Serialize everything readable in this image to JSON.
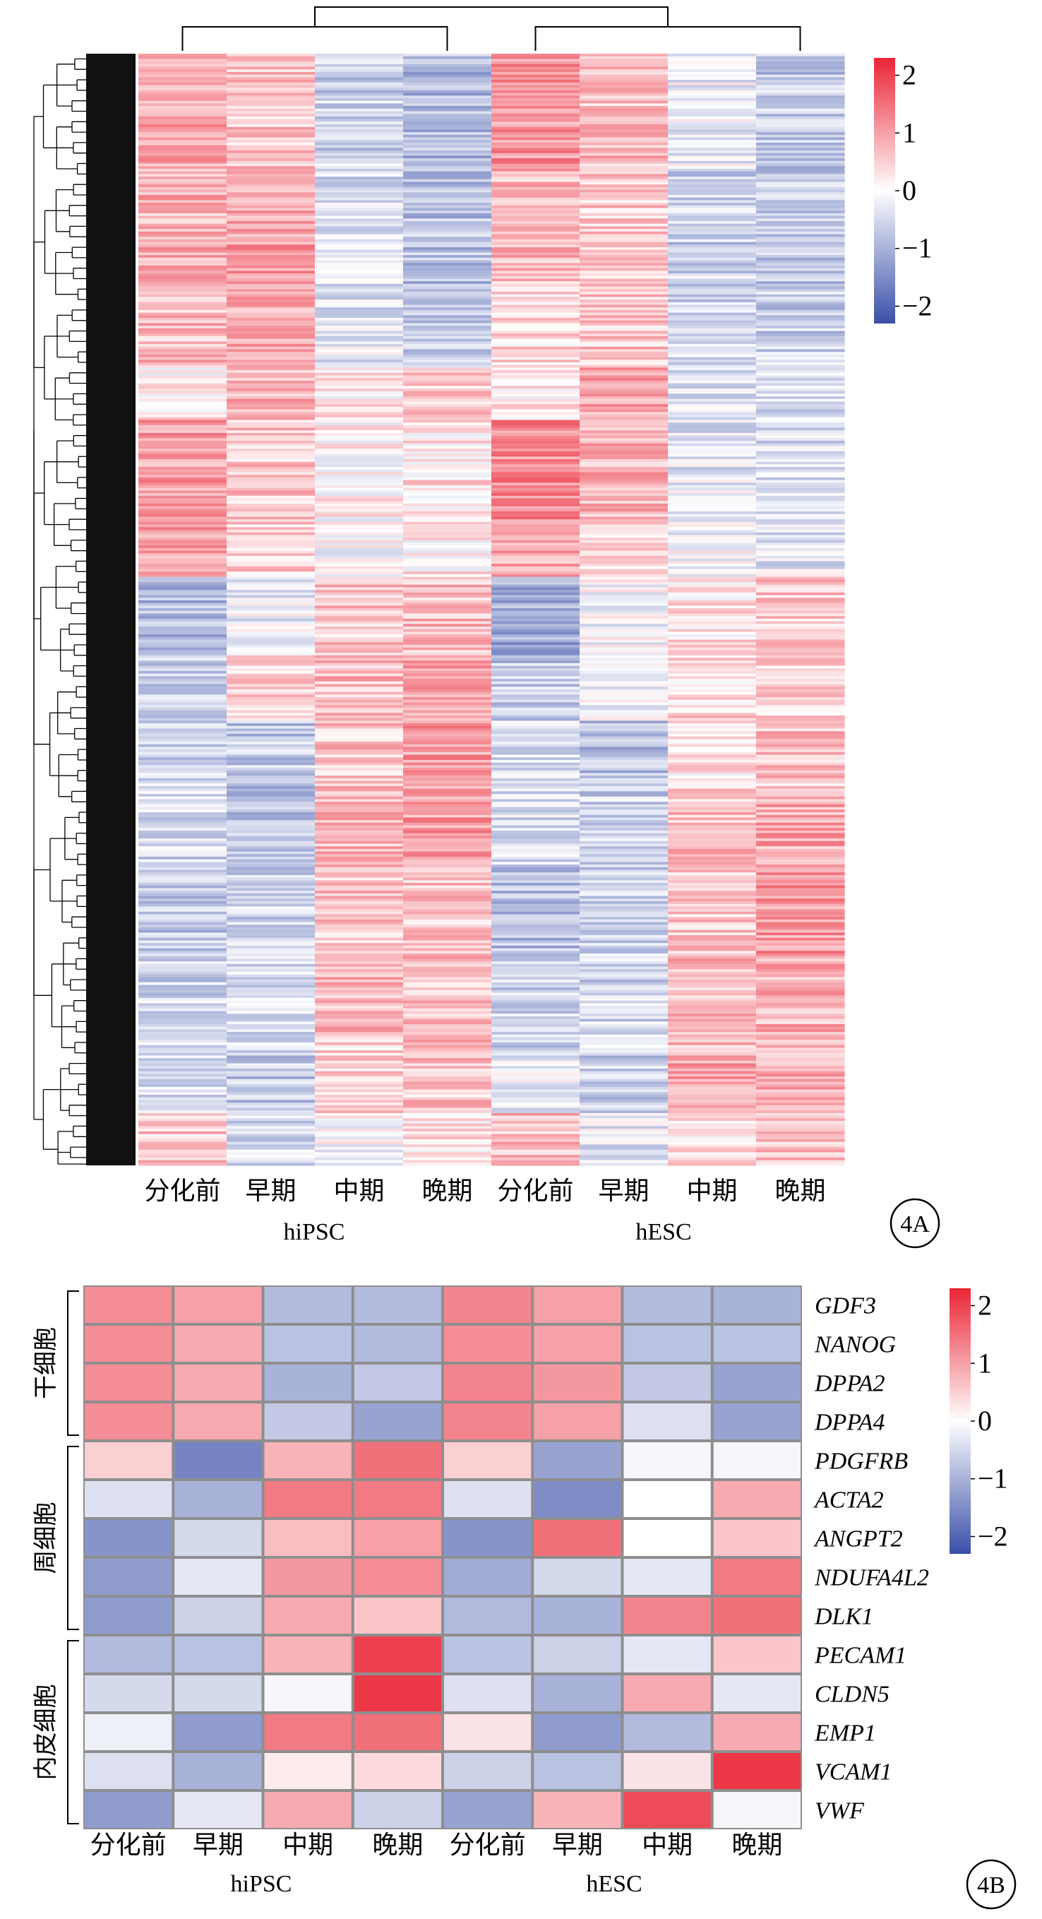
{
  "colors": {
    "low": "#3a4fa8",
    "mid": "#ffffff",
    "high": "#ea2535",
    "gap": "#8e8e8e",
    "tree": "#000000"
  },
  "chart_data": [
    {
      "id": "4A",
      "type": "heatmap",
      "panel_label": "4A",
      "columns": [
        "分化前",
        "早期",
        "中期",
        "晚期",
        "分化前",
        "早期",
        "中期",
        "晚期"
      ],
      "groups": [
        {
          "name": "hiPSC",
          "span": [
            0,
            3
          ]
        },
        {
          "name": "hESC",
          "span": [
            4,
            7
          ]
        }
      ],
      "column_dendrogram": true,
      "row_dendrogram": true,
      "row_blocks": [
        {
          "rows": 45,
          "values": [
            0.9,
            0.6,
            -0.6,
            -0.9,
            1.1,
            0.7,
            -0.2,
            -0.7
          ]
        },
        {
          "rows": 45,
          "values": [
            0.8,
            1.0,
            -0.4,
            -0.8,
            0.7,
            0.6,
            -0.6,
            -0.7
          ]
        },
        {
          "rows": 30,
          "values": [
            0.7,
            0.9,
            -0.3,
            -0.6,
            0.4,
            0.6,
            -0.5,
            -0.6
          ]
        },
        {
          "rows": 20,
          "values": [
            0.2,
            0.8,
            0.2,
            0.6,
            0.2,
            0.9,
            -0.3,
            -0.4
          ]
        },
        {
          "rows": 40,
          "values": [
            1.0,
            0.6,
            0.1,
            0.3,
            1.2,
            0.8,
            -0.3,
            -0.4
          ]
        },
        {
          "rows": 20,
          "values": [
            0.9,
            0.5,
            -0.1,
            0.2,
            0.9,
            0.4,
            -0.1,
            -0.3
          ]
        },
        {
          "rows": 30,
          "values": [
            -0.9,
            -0.2,
            0.6,
            0.7,
            -1.1,
            -0.1,
            0.3,
            0.6
          ]
        },
        {
          "rows": 25,
          "values": [
            -0.6,
            0.4,
            0.7,
            1.0,
            -0.7,
            -0.1,
            0.4,
            0.5
          ]
        },
        {
          "rows": 25,
          "values": [
            -0.5,
            -0.7,
            0.6,
            1.0,
            -0.4,
            -0.8,
            0.3,
            0.6
          ]
        },
        {
          "rows": 30,
          "values": [
            -0.5,
            -0.8,
            0.7,
            1.0,
            -0.4,
            -0.6,
            0.6,
            0.9
          ]
        },
        {
          "rows": 35,
          "values": [
            -0.7,
            -0.6,
            0.6,
            0.6,
            -0.8,
            -0.6,
            0.5,
            1.1
          ]
        },
        {
          "rows": 35,
          "values": [
            -0.5,
            -0.4,
            0.7,
            0.7,
            -0.6,
            -0.5,
            0.7,
            0.8
          ]
        },
        {
          "rows": 25,
          "values": [
            -0.4,
            -0.7,
            0.5,
            0.6,
            -0.2,
            -0.6,
            0.9,
            0.8
          ]
        },
        {
          "rows": 20,
          "values": [
            0.6,
            -0.5,
            -0.1,
            0.3,
            0.7,
            -0.3,
            0.3,
            0.6
          ]
        }
      ],
      "legend_ticks": [
        "2",
        "1",
        "0",
        "−1",
        "−2"
      ],
      "legend_range": [
        -2.3,
        2.3
      ]
    },
    {
      "id": "4B",
      "type": "heatmap",
      "panel_label": "4B",
      "columns": [
        "分化前",
        "早期",
        "中期",
        "晚期",
        "分化前",
        "早期",
        "中期",
        "晚期"
      ],
      "groups": [
        {
          "name": "hiPSC",
          "span": [
            0,
            3
          ]
        },
        {
          "name": "hESC",
          "span": [
            4,
            7
          ]
        }
      ],
      "rows": [
        "GDF3",
        "NANOG",
        "DPPA2",
        "DPPA4",
        "PDGFRB",
        "ACTA2",
        "ANGPT2",
        "NDUFA4L2",
        "DLK1",
        "PECAM1",
        "CLDN5",
        "EMP1",
        "VCAM1",
        "VWF"
      ],
      "row_groups": [
        {
          "name": "干细胞",
          "span": [
            0,
            3
          ]
        },
        {
          "name": "周细胞",
          "span": [
            4,
            8
          ]
        },
        {
          "name": "内皮细胞",
          "span": [
            9,
            13
          ]
        }
      ],
      "values": [
        [
          1.2,
          1.0,
          -0.9,
          -0.9,
          1.3,
          1.0,
          -0.9,
          -1.0
        ],
        [
          1.2,
          0.9,
          -0.8,
          -0.9,
          1.2,
          1.0,
          -0.8,
          -0.8
        ],
        [
          1.2,
          0.9,
          -1.0,
          -0.7,
          1.3,
          1.1,
          -0.7,
          -1.2
        ],
        [
          1.2,
          0.9,
          -0.7,
          -1.2,
          1.3,
          1.0,
          -0.4,
          -1.2
        ],
        [
          0.5,
          -1.6,
          0.8,
          1.5,
          0.5,
          -1.2,
          -0.1,
          -0.1
        ],
        [
          -0.4,
          -1.0,
          1.4,
          1.4,
          -0.4,
          -1.5,
          0.0,
          0.9
        ],
        [
          -1.4,
          -0.5,
          0.7,
          1.0,
          -1.4,
          1.5,
          0.0,
          0.6
        ],
        [
          -1.3,
          -0.3,
          1.1,
          1.2,
          -1.1,
          -0.5,
          -0.3,
          1.4
        ],
        [
          -1.3,
          -0.6,
          0.9,
          0.6,
          -0.9,
          -1.0,
          1.3,
          1.5
        ],
        [
          -0.9,
          -0.8,
          0.8,
          2.0,
          -0.8,
          -0.6,
          -0.3,
          0.6
        ],
        [
          -0.5,
          -0.5,
          -0.1,
          2.1,
          -0.4,
          -1.0,
          0.9,
          -0.3
        ],
        [
          -0.2,
          -1.3,
          1.4,
          1.5,
          0.3,
          -1.3,
          -0.9,
          0.9
        ],
        [
          -0.4,
          -1.0,
          0.2,
          0.4,
          -0.6,
          -0.8,
          0.3,
          2.1
        ],
        [
          -1.3,
          -0.3,
          0.9,
          -0.6,
          -1.2,
          0.8,
          1.9,
          -0.1
        ]
      ],
      "legend_ticks": [
        "2",
        "1",
        "0",
        "−1",
        "−2"
      ],
      "legend_range": [
        -2.3,
        2.3
      ]
    }
  ]
}
